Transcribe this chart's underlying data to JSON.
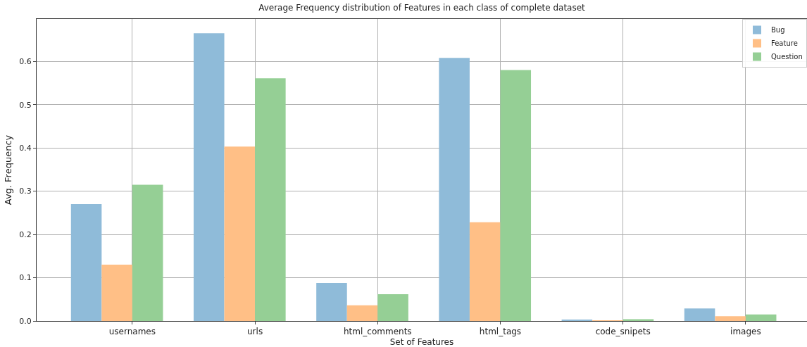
{
  "chart_data": {
    "type": "bar",
    "title": "Average Frequency distribution of Features in each class of complete dataset",
    "xlabel": "Set of Features",
    "ylabel": "Avg. Frequency",
    "categories": [
      "usernames",
      "urls",
      "html_comments",
      "html_tags",
      "code_snipets",
      "images"
    ],
    "series": [
      {
        "name": "Bug",
        "color": "#8fbbd9",
        "values": [
          0.27,
          0.665,
          0.088,
          0.608,
          0.002,
          0.029
        ]
      },
      {
        "name": "Feature",
        "color": "#ffbf86",
        "values": [
          0.13,
          0.403,
          0.036,
          0.228,
          0.001,
          0.011
        ]
      },
      {
        "name": "Question",
        "color": "#95cf95",
        "values": [
          0.315,
          0.561,
          0.062,
          0.58,
          0.004,
          0.015
        ]
      }
    ],
    "ylim": [
      0,
      0.698
    ],
    "yticks": [
      {
        "value": 0,
        "label": "0.0"
      },
      0.1,
      0.2,
      0.3,
      0.4,
      0.5,
      0.6
    ],
    "grid": true,
    "legend": "top right"
  }
}
